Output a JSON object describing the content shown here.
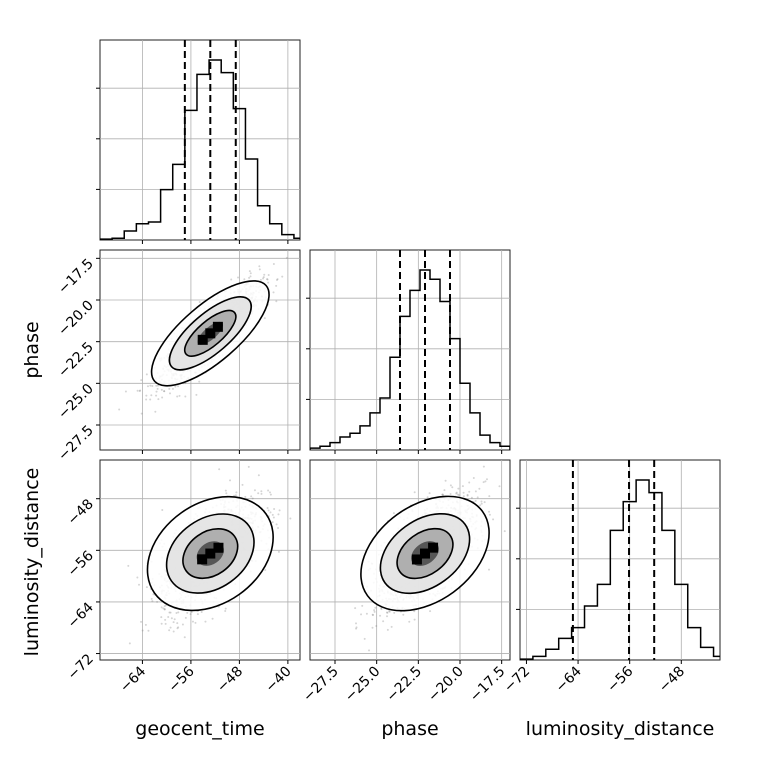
{
  "chart_data": {
    "type": "corner",
    "parameters": [
      {
        "name": "geocent_time",
        "label": "geocent_time",
        "range": [
          -71,
          -38
        ],
        "ticks": [
          -64,
          -56,
          -48,
          -40
        ],
        "tick_labels": [
          "−64",
          "−56",
          "−48",
          "−40"
        ],
        "quantiles": [
          -57.0,
          -52.8,
          -48.6
        ],
        "hist": {
          "bins": [
            -71,
            -69,
            -67,
            -65,
            -63,
            -61,
            -59,
            -57,
            -55,
            -53,
            -51,
            -49,
            -47,
            -45,
            -43,
            -41,
            -39,
            -37
          ],
          "counts": [
            0.005,
            0.01,
            0.05,
            0.09,
            0.1,
            0.28,
            0.42,
            0.72,
            0.92,
            1.0,
            0.93,
            0.73,
            0.45,
            0.19,
            0.09,
            0.03,
            0.01
          ]
        }
      },
      {
        "name": "phase",
        "label": "phase",
        "range": [
          -29,
          -17
        ],
        "ticks": [
          -27.5,
          -25.0,
          -22.5,
          -20.0,
          -17.5
        ],
        "tick_labels": [
          "−27.5",
          "−25.0",
          "−22.5",
          "−20.0",
          "−17.5"
        ],
        "quantiles": [
          -23.6,
          -22.1,
          -20.6
        ],
        "hist": {
          "bins": [
            -29,
            -28.4,
            -27.8,
            -27.2,
            -26.6,
            -26.0,
            -25.4,
            -24.8,
            -24.2,
            -23.6,
            -23.0,
            -22.4,
            -21.8,
            -21.2,
            -20.6,
            -20.0,
            -19.4,
            -18.8,
            -18.2,
            -17.6,
            -17.0
          ],
          "counts": [
            0.01,
            0.02,
            0.04,
            0.07,
            0.09,
            0.13,
            0.2,
            0.28,
            0.5,
            0.72,
            0.86,
            0.97,
            0.92,
            0.8,
            0.6,
            0.36,
            0.2,
            0.08,
            0.04,
            0.02
          ]
        }
      },
      {
        "name": "luminosity_distance",
        "label": "luminosity_distance",
        "range": [
          -73,
          -42
        ],
        "ticks": [
          -72,
          -64,
          -56,
          -48
        ],
        "tick_labels": [
          "−72",
          "−64",
          "−56",
          "−48"
        ],
        "quantiles": [
          -64.8,
          -56.1,
          -52.2
        ],
        "hist": {
          "bins": [
            -73,
            -71,
            -69,
            -67,
            -65,
            -63,
            -61,
            -59,
            -57,
            -55,
            -53,
            -51,
            -49,
            -47,
            -45,
            -43,
            -41
          ],
          "counts": [
            0.005,
            0.02,
            0.06,
            0.12,
            0.18,
            0.3,
            0.42,
            0.72,
            0.88,
            1.0,
            0.93,
            0.72,
            0.42,
            0.18,
            0.07,
            0.02
          ]
        }
      }
    ],
    "pairs": [
      {
        "x": "geocent_time",
        "y": "phase"
      },
      {
        "x": "geocent_time",
        "y": "luminosity_distance"
      },
      {
        "x": "phase",
        "y": "luminosity_distance"
      }
    ],
    "grid": true,
    "legend": "none"
  }
}
